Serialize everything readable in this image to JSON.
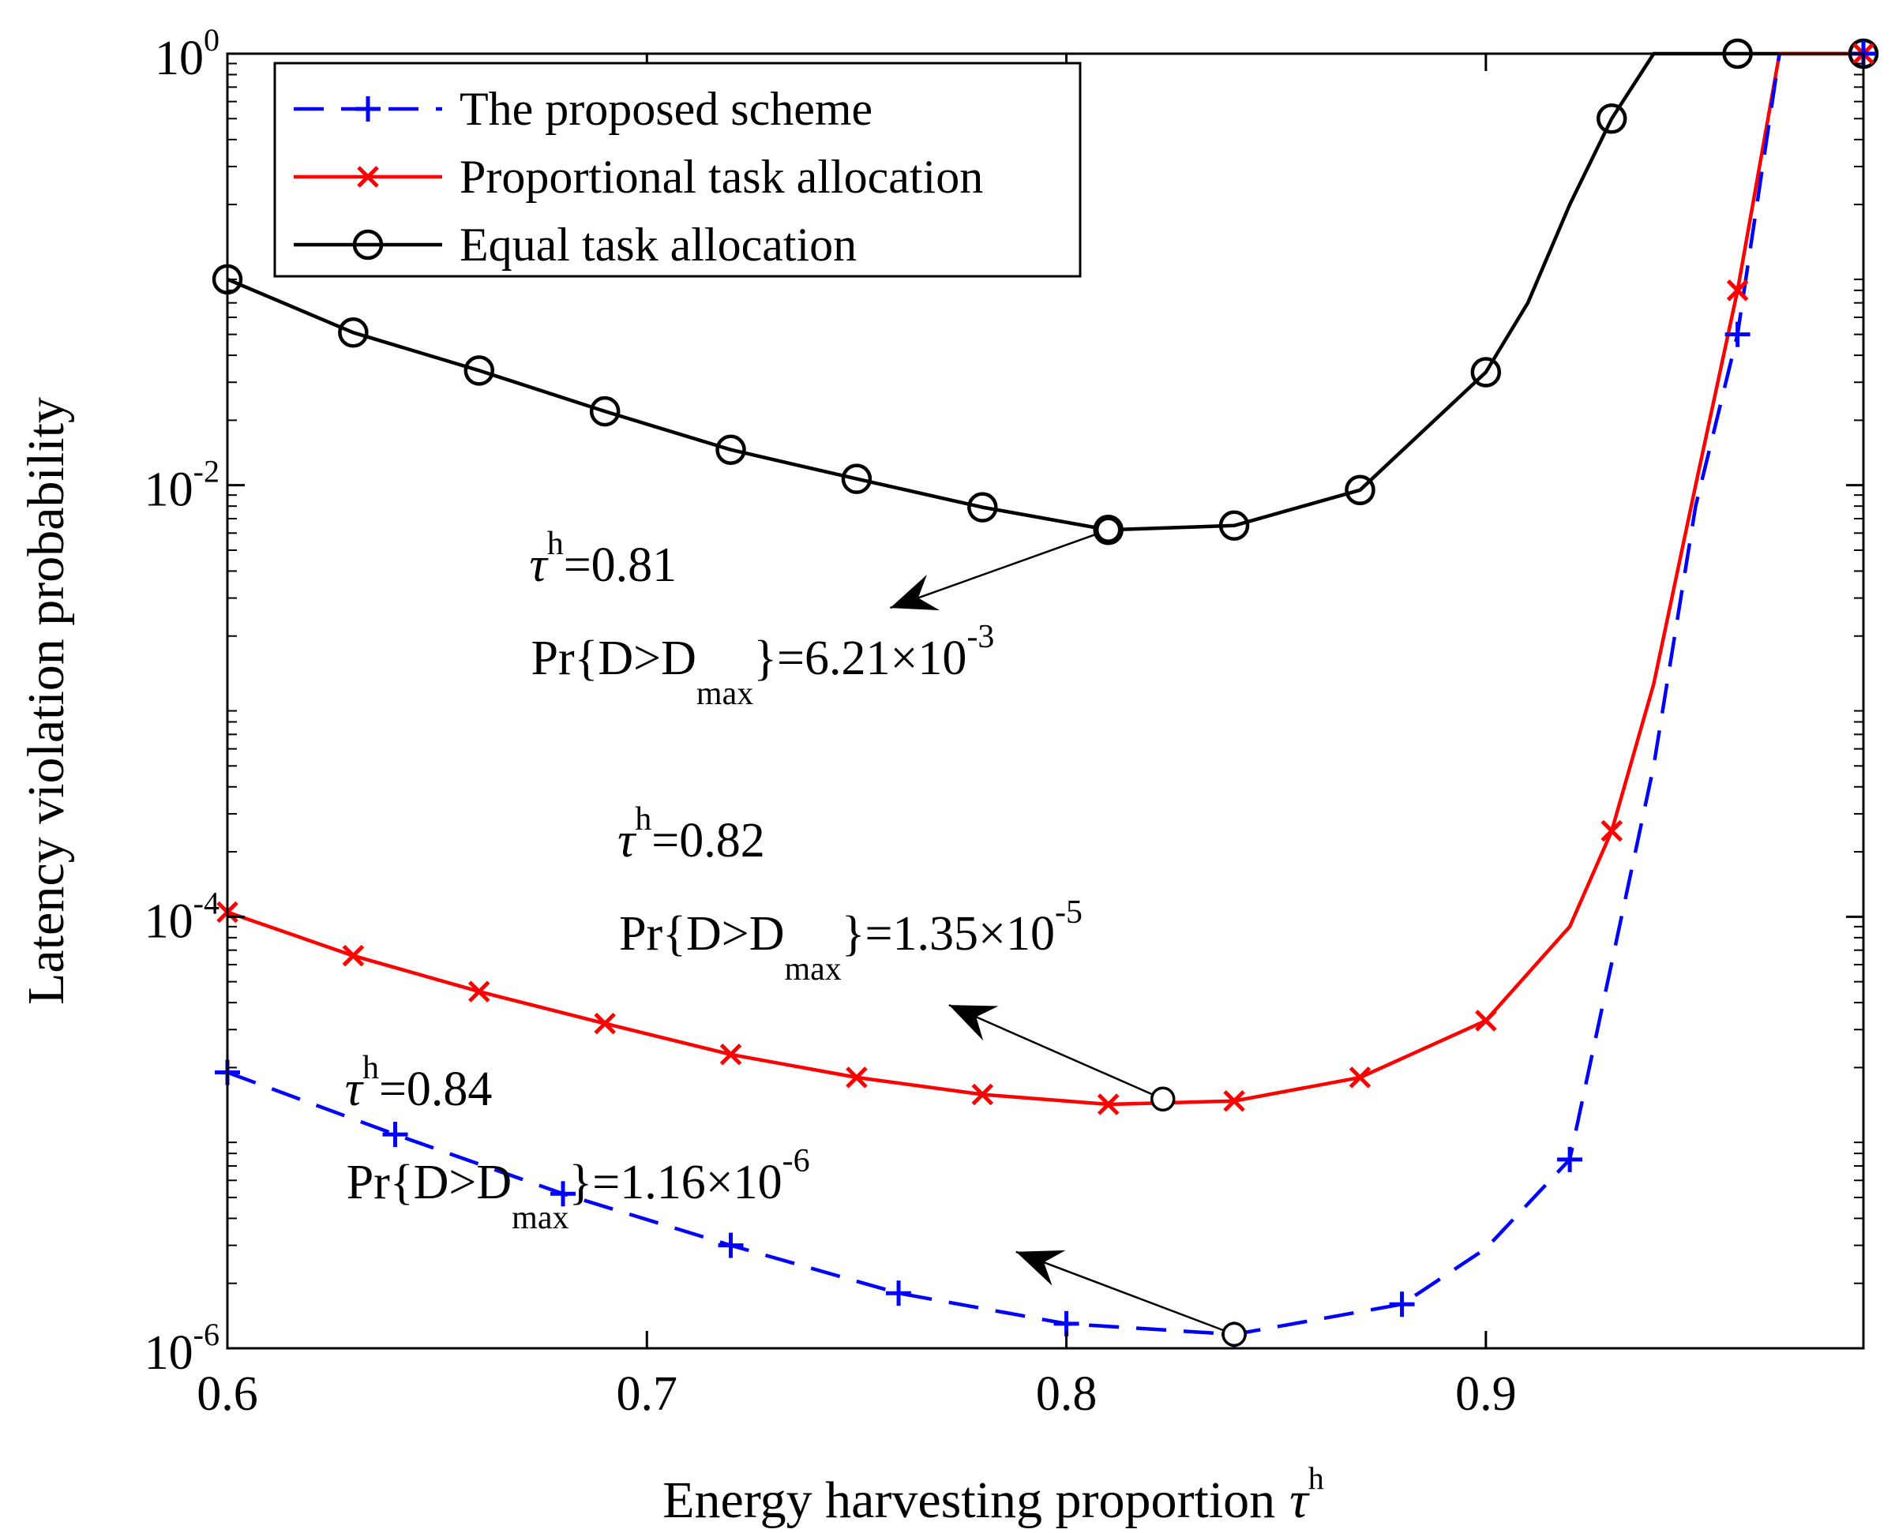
{
  "chart_data": {
    "type": "line",
    "xlabel": "Energy harvesting proportion",
    "xlabel_symbol": "τ",
    "xlabel_symbol_sup": "h",
    "ylabel": "Latency violation probability",
    "yscale": "log",
    "xlim": [
      0.6,
      0.99
    ],
    "ylim": [
      1e-06,
      1
    ],
    "grid": false,
    "legend_position": "top-left",
    "xticks": [
      {
        "value": 0.6,
        "label": "0.6"
      },
      {
        "value": 0.7,
        "label": "0.7"
      },
      {
        "value": 0.8,
        "label": "0.8"
      },
      {
        "value": 0.9,
        "label": "0.9"
      }
    ],
    "yticks": [
      {
        "value": 1e-06,
        "base": "10",
        "exp": "-6"
      },
      {
        "value": 0.0001,
        "base": "10",
        "exp": "-4"
      },
      {
        "value": 0.01,
        "base": "10",
        "exp": "-2"
      },
      {
        "value": 1,
        "base": "10",
        "exp": "0"
      }
    ],
    "series": [
      {
        "name": "The proposed scheme",
        "color": "#0000ff",
        "line_style": "dashed",
        "marker": "plus",
        "x": [
          0.6,
          0.64,
          0.68,
          0.72,
          0.76,
          0.8,
          0.84,
          0.88,
          0.9,
          0.92,
          0.94,
          0.95,
          0.96,
          0.97
        ],
        "y": [
          1.9e-05,
          9.8e-06,
          5.2e-06,
          3e-06,
          1.8e-06,
          1.3e-06,
          1.16e-06,
          1.6e-06,
          2.9e-06,
          7.5e-06,
          0.0005,
          0.008,
          0.05,
          1
        ],
        "marker_x": [
          0.6,
          0.64,
          0.68,
          0.72,
          0.76,
          0.8,
          0.84,
          0.88,
          0.92,
          0.96,
          0.99
        ],
        "marker_y": [
          1.9e-05,
          9.8e-06,
          5.2e-06,
          3e-06,
          1.8e-06,
          1.3e-06,
          1.16e-06,
          1.6e-06,
          7.5e-06,
          0.05,
          1
        ]
      },
      {
        "name": "Proportional task allocation",
        "color": "#ff0000",
        "line_style": "solid",
        "marker": "x",
        "x": [
          0.6,
          0.63,
          0.66,
          0.69,
          0.72,
          0.75,
          0.78,
          0.81,
          0.84,
          0.87,
          0.9,
          0.92,
          0.93,
          0.94,
          0.95,
          0.96,
          0.97,
          0.99
        ],
        "y": [
          0.000105,
          6.6e-05,
          4.5e-05,
          3.2e-05,
          2.3e-05,
          1.8e-05,
          1.5e-05,
          1.35e-05,
          1.4e-05,
          1.8e-05,
          3.3e-05,
          9e-05,
          0.00025,
          0.0012,
          0.01,
          0.08,
          1,
          1
        ],
        "marker_x": [
          0.6,
          0.63,
          0.66,
          0.69,
          0.72,
          0.75,
          0.78,
          0.81,
          0.84,
          0.87,
          0.9,
          0.93,
          0.96,
          0.99
        ],
        "marker_y": [
          0.000105,
          6.6e-05,
          4.5e-05,
          3.2e-05,
          2.3e-05,
          1.8e-05,
          1.5e-05,
          1.35e-05,
          1.4e-05,
          1.8e-05,
          3.3e-05,
          0.00025,
          0.08,
          1
        ]
      },
      {
        "name": "Equal task allocation",
        "color": "#000000",
        "line_style": "solid",
        "marker": "circle",
        "x": [
          0.6,
          0.63,
          0.66,
          0.69,
          0.72,
          0.75,
          0.78,
          0.81,
          0.84,
          0.87,
          0.9,
          0.91,
          0.92,
          0.93,
          0.94,
          0.96,
          0.99
        ],
        "y": [
          0.09,
          0.051,
          0.034,
          0.022,
          0.0146,
          0.0107,
          0.0079,
          0.00621,
          0.0065,
          0.0095,
          0.0334,
          0.07,
          0.2,
          0.5,
          1,
          1,
          1
        ],
        "marker_x": [
          0.6,
          0.63,
          0.66,
          0.69,
          0.72,
          0.75,
          0.78,
          0.81,
          0.84,
          0.87,
          0.9,
          0.93,
          0.96,
          0.99
        ],
        "marker_y": [
          0.09,
          0.051,
          0.034,
          0.022,
          0.0146,
          0.0107,
          0.0079,
          0.00621,
          0.0065,
          0.0095,
          0.0334,
          0.5,
          1,
          1
        ]
      }
    ],
    "annotations": [
      {
        "tau_symbol": "τ",
        "tau_sup": "h",
        "tau_value": "=0.81",
        "pr_prefix": "Pr{D>D",
        "pr_sub": "max",
        "pr_value": "}=6.21×10",
        "pr_exp": "-3",
        "point": {
          "x": 0.81,
          "y": 0.00621
        },
        "arrow_head": {
          "x": 0.758,
          "y": 0.0027
        },
        "text_at": {
          "x": 0.672,
          "y": 0.0036
        }
      },
      {
        "tau_symbol": "τ",
        "tau_sup": "h",
        "tau_value": "=0.82",
        "pr_prefix": "Pr{D>D",
        "pr_sub": "max",
        "pr_value": "}=1.35×10",
        "pr_exp": "-5",
        "point": {
          "x": 0.823,
          "y": 1.43e-05
        },
        "arrow_head": {
          "x": 0.772,
          "y": 3.9e-05
        },
        "text_at": {
          "x": 0.693,
          "y": 0.00019
        }
      },
      {
        "tau_symbol": "τ",
        "tau_sup": "h",
        "tau_value": "=0.84",
        "pr_prefix": "Pr{D>D",
        "pr_sub": "max",
        "pr_value": "}=1.16×10",
        "pr_exp": "-6",
        "point": {
          "x": 0.84,
          "y": 1.16e-06
        },
        "arrow_head": {
          "x": 0.788,
          "y": 2.8e-06
        },
        "text_at": {
          "x": 0.628,
          "y": 1.34e-05
        }
      }
    ]
  }
}
